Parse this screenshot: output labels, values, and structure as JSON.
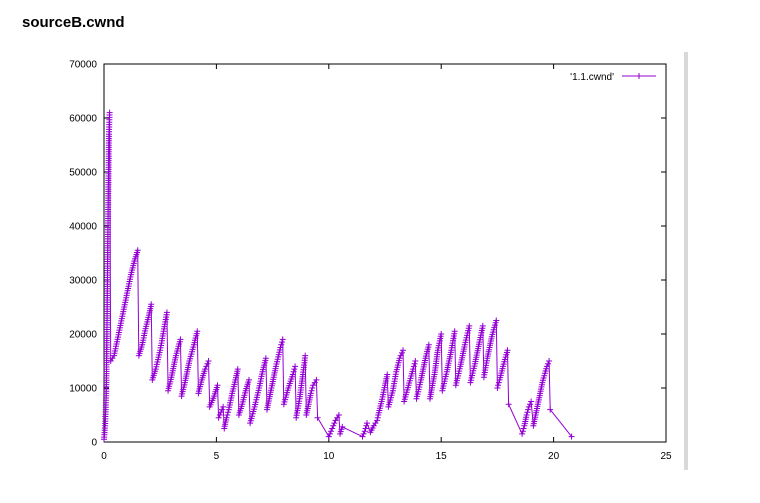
{
  "page": {
    "title": "sourceB.cwnd"
  },
  "chart_data": {
    "type": "line",
    "title": "",
    "xlabel": "",
    "ylabel": "",
    "xlim": [
      0,
      25
    ],
    "ylim": [
      0,
      70000
    ],
    "x_ticks": [
      0,
      5,
      10,
      15,
      20,
      25
    ],
    "y_ticks": [
      0,
      10000,
      20000,
      30000,
      40000,
      50000,
      60000,
      70000
    ],
    "grid": false,
    "legend_position": "top-right",
    "marker": "plus",
    "color": "#9400d3",
    "series": [
      {
        "name": "'1.1.cwnd'",
        "points": [
          [
            0.0,
            500
          ],
          [
            0.05,
            3000
          ],
          [
            0.1,
            9000
          ],
          [
            0.13,
            20000
          ],
          [
            0.16,
            33000
          ],
          [
            0.19,
            46000
          ],
          [
            0.22,
            57000
          ],
          [
            0.25,
            61000
          ],
          [
            0.3,
            15000
          ],
          [
            0.45,
            16000
          ],
          [
            0.6,
            19000
          ],
          [
            0.75,
            22000
          ],
          [
            0.9,
            25000
          ],
          [
            1.05,
            28000
          ],
          [
            1.2,
            31000
          ],
          [
            1.35,
            33500
          ],
          [
            1.5,
            35500
          ],
          [
            1.55,
            16000
          ],
          [
            1.7,
            18000
          ],
          [
            1.85,
            21000
          ],
          [
            2.0,
            23500
          ],
          [
            2.1,
            25500
          ],
          [
            2.15,
            11500
          ],
          [
            2.3,
            13500
          ],
          [
            2.5,
            17000
          ],
          [
            2.65,
            20500
          ],
          [
            2.8,
            24000
          ],
          [
            2.85,
            9500
          ],
          [
            3.0,
            12000
          ],
          [
            3.2,
            16000
          ],
          [
            3.4,
            19000
          ],
          [
            3.45,
            8500
          ],
          [
            3.6,
            11000
          ],
          [
            3.8,
            15000
          ],
          [
            4.0,
            18000
          ],
          [
            4.15,
            20500
          ],
          [
            4.2,
            9000
          ],
          [
            4.35,
            11500
          ],
          [
            4.5,
            13500
          ],
          [
            4.65,
            15000
          ],
          [
            4.7,
            6500
          ],
          [
            4.9,
            8500
          ],
          [
            5.05,
            10500
          ],
          [
            5.1,
            4500
          ],
          [
            5.2,
            5500
          ],
          [
            5.3,
            6500
          ],
          [
            5.35,
            2500
          ],
          [
            5.45,
            4500
          ],
          [
            5.55,
            6000
          ],
          [
            5.7,
            9000
          ],
          [
            5.85,
            11500
          ],
          [
            5.95,
            13500
          ],
          [
            6.0,
            5000
          ],
          [
            6.15,
            7000
          ],
          [
            6.3,
            9500
          ],
          [
            6.45,
            11500
          ],
          [
            6.5,
            3500
          ],
          [
            6.7,
            6500
          ],
          [
            6.9,
            10000
          ],
          [
            7.05,
            13000
          ],
          [
            7.2,
            15500
          ],
          [
            7.25,
            6000
          ],
          [
            7.45,
            10000
          ],
          [
            7.65,
            14000
          ],
          [
            7.85,
            17500
          ],
          [
            7.95,
            19000
          ],
          [
            8.0,
            7000
          ],
          [
            8.2,
            10000
          ],
          [
            8.4,
            12500
          ],
          [
            8.5,
            14000
          ],
          [
            8.55,
            4500
          ],
          [
            8.7,
            8000
          ],
          [
            8.85,
            12500
          ],
          [
            8.95,
            16000
          ],
          [
            9.0,
            5000
          ],
          [
            9.1,
            7000
          ],
          [
            9.2,
            9000
          ],
          [
            9.3,
            10500
          ],
          [
            9.45,
            11500
          ],
          [
            9.5,
            4500
          ],
          [
            10.0,
            1000
          ],
          [
            10.15,
            2500
          ],
          [
            10.3,
            4000
          ],
          [
            10.45,
            5000
          ],
          [
            10.5,
            1500
          ],
          [
            10.6,
            2800
          ],
          [
            11.5,
            1000
          ],
          [
            11.6,
            2000
          ],
          [
            11.7,
            3500
          ],
          [
            11.85,
            1800
          ],
          [
            12.0,
            3000
          ],
          [
            12.15,
            4000
          ],
          [
            12.2,
            5000
          ],
          [
            12.35,
            7500
          ],
          [
            12.5,
            10500
          ],
          [
            12.6,
            12500
          ],
          [
            12.65,
            6500
          ],
          [
            12.85,
            9500
          ],
          [
            13.0,
            13000
          ],
          [
            13.15,
            15500
          ],
          [
            13.3,
            17000
          ],
          [
            13.35,
            7500
          ],
          [
            13.55,
            10500
          ],
          [
            13.75,
            13500
          ],
          [
            13.85,
            15000
          ],
          [
            13.9,
            8000
          ],
          [
            14.1,
            11500
          ],
          [
            14.3,
            15500
          ],
          [
            14.45,
            18000
          ],
          [
            14.5,
            8000
          ],
          [
            14.7,
            12500
          ],
          [
            14.85,
            17000
          ],
          [
            15.0,
            20000
          ],
          [
            15.05,
            9500
          ],
          [
            15.25,
            13000
          ],
          [
            15.45,
            17000
          ],
          [
            15.6,
            20500
          ],
          [
            15.65,
            10500
          ],
          [
            15.85,
            14000
          ],
          [
            16.05,
            18000
          ],
          [
            16.25,
            21500
          ],
          [
            16.3,
            11000
          ],
          [
            16.5,
            14500
          ],
          [
            16.7,
            18500
          ],
          [
            16.85,
            21500
          ],
          [
            16.9,
            12000
          ],
          [
            17.05,
            15500
          ],
          [
            17.25,
            19500
          ],
          [
            17.45,
            22500
          ],
          [
            17.5,
            10000
          ],
          [
            17.6,
            11500
          ],
          [
            17.75,
            14000
          ],
          [
            17.95,
            17000
          ],
          [
            18.0,
            7000
          ],
          [
            18.6,
            1500
          ],
          [
            18.7,
            3000
          ],
          [
            18.8,
            5000
          ],
          [
            18.9,
            6500
          ],
          [
            19.0,
            7500
          ],
          [
            19.1,
            3000
          ],
          [
            19.3,
            7000
          ],
          [
            19.5,
            11000
          ],
          [
            19.7,
            14000
          ],
          [
            19.8,
            15000
          ],
          [
            19.85,
            6000
          ],
          [
            20.8,
            1000
          ]
        ]
      }
    ]
  }
}
